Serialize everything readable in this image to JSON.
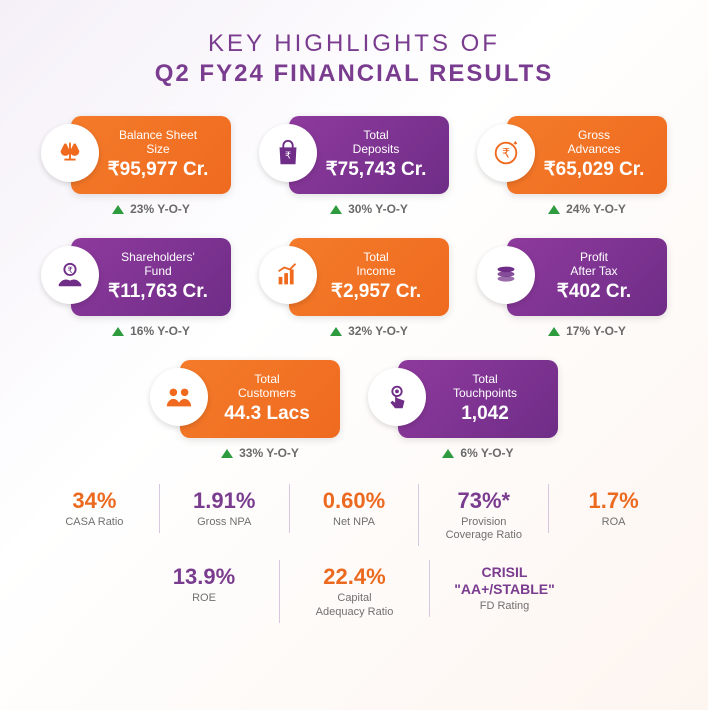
{
  "title": {
    "line1": "KEY HIGHLIGHTS OF",
    "line2": "Q2 FY24 FINANCIAL RESULTS"
  },
  "colors": {
    "orange_grad_a": "#f47b2a",
    "orange_grad_b": "#ef6a1f",
    "purple_grad_a": "#8e3a9d",
    "purple_grad_b": "#6f2d87",
    "title_color": "#7a3c8f",
    "growth_green": "#2e9b3f",
    "bg_grad_a": "#f5f0f8",
    "bg_grad_b": "#ffffff",
    "bg_grad_c": "#fdf5f0",
    "divider": "#d7c7df",
    "label_gray": "#707070"
  },
  "cards": [
    {
      "label": "Balance Sheet\nSize",
      "value": "₹95,977 Cr.",
      "growth": "23% Y-O-Y",
      "theme": "orange",
      "icon": "scales"
    },
    {
      "label": "Total\nDeposits",
      "value": "₹75,743 Cr.",
      "growth": "30% Y-O-Y",
      "theme": "purple",
      "icon": "bag"
    },
    {
      "label": "Gross\nAdvances",
      "value": "₹65,029 Cr.",
      "growth": "24% Y-O-Y",
      "theme": "orange",
      "icon": "coin"
    },
    {
      "label": "Shareholders'\nFund",
      "value": "₹11,763 Cr.",
      "growth": "16% Y-O-Y",
      "theme": "purple",
      "icon": "hand"
    },
    {
      "label": "Total\nIncome",
      "value": "₹2,957 Cr.",
      "growth": "32% Y-O-Y",
      "theme": "orange",
      "icon": "chart"
    },
    {
      "label": "Profit\nAfter Tax",
      "value": "₹402 Cr.",
      "growth": "17% Y-O-Y",
      "theme": "purple",
      "icon": "stack"
    },
    {
      "label": "Total\nCustomers",
      "value": "44.3 Lacs",
      "growth": "33% Y-O-Y",
      "theme": "orange",
      "icon": "people"
    },
    {
      "label": "Total\nTouchpoints",
      "value": "1,042",
      "growth": "6% Y-O-Y",
      "theme": "purple",
      "icon": "touch"
    }
  ],
  "card_layout": {
    "rows": [
      3,
      3,
      2
    ]
  },
  "ratios_row1": [
    {
      "value": "34%",
      "label": "CASA Ratio",
      "theme": "orange"
    },
    {
      "value": "1.91%",
      "label": "Gross NPA",
      "theme": "purple"
    },
    {
      "value": "0.60%",
      "label": "Net NPA",
      "theme": "orange"
    },
    {
      "value": "73%*",
      "label": "Provision\nCoverage Ratio",
      "theme": "purple"
    },
    {
      "value": "1.7%",
      "label": "ROA",
      "theme": "orange"
    }
  ],
  "ratios_row2": [
    {
      "value": "13.9%",
      "label": "ROE",
      "theme": "purple"
    },
    {
      "value": "22.4%",
      "label": "Capital\nAdequacy Ratio",
      "theme": "orange"
    },
    {
      "value": "CRISIL\n\"AA+/STABLE\"",
      "label": "FD Rating",
      "theme": "purple",
      "small": true
    }
  ],
  "footnote": ""
}
